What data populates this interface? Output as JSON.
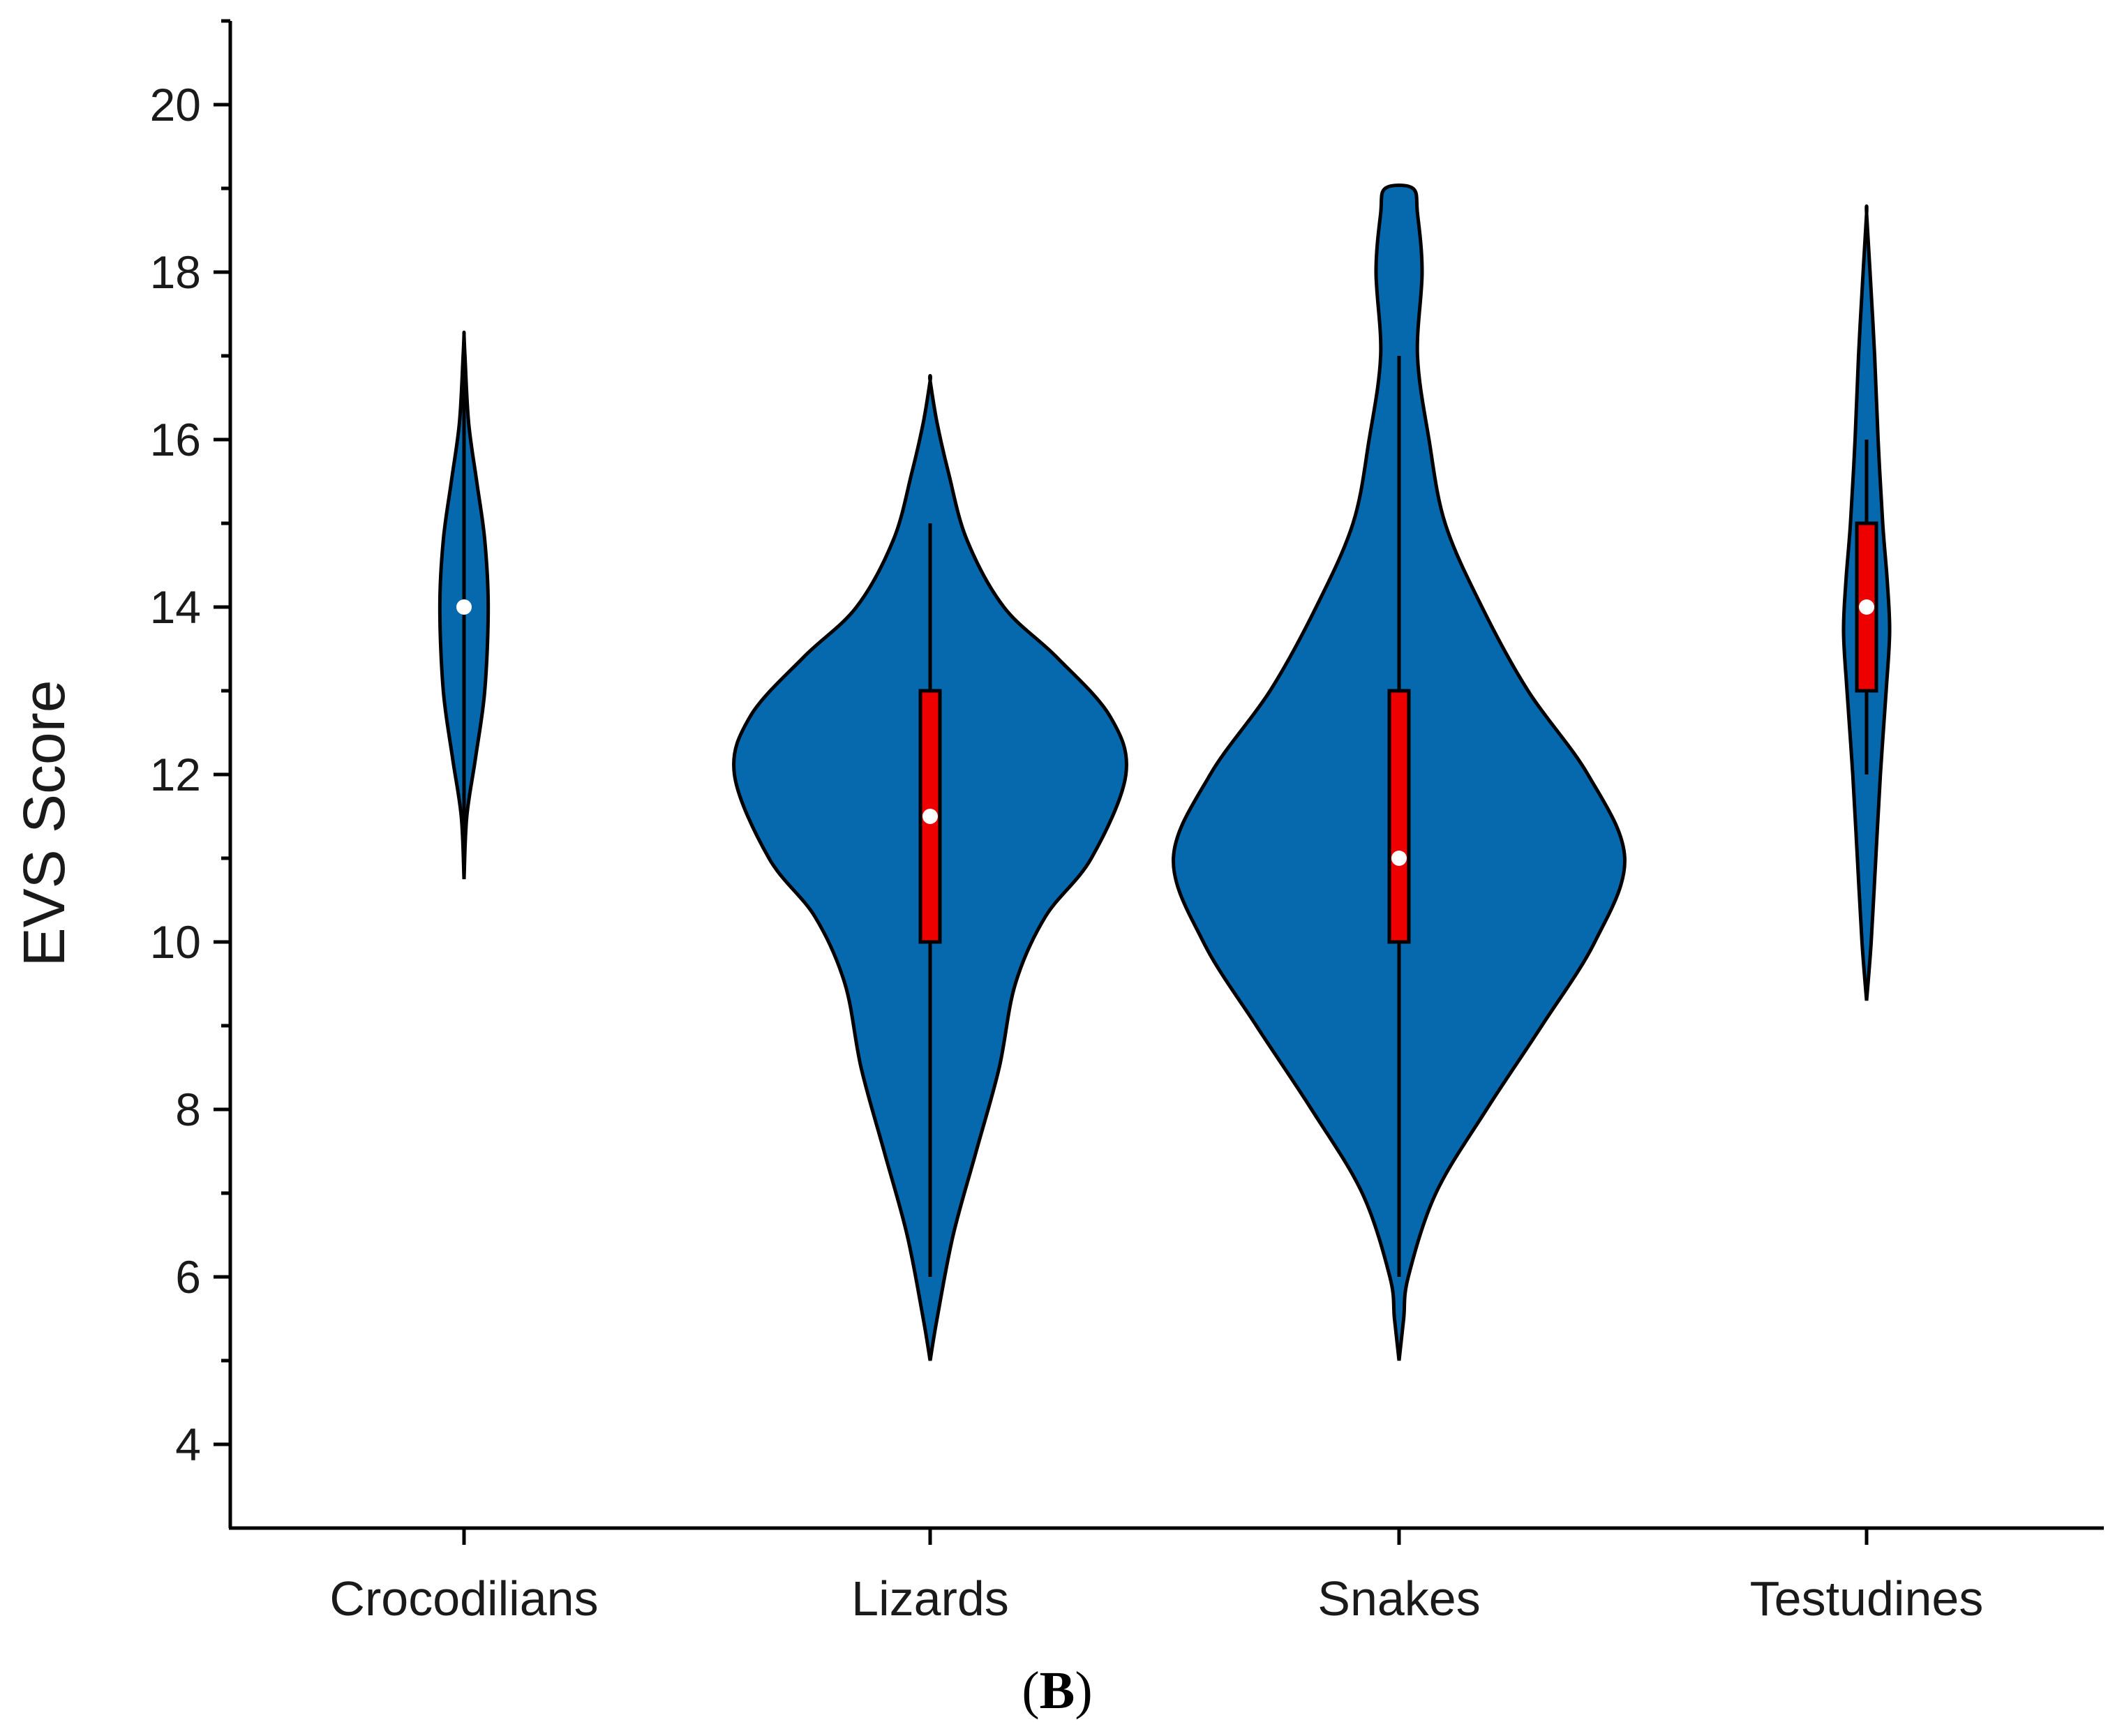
{
  "chart_data": {
    "type": "violin",
    "ylabel": "EVS Score",
    "panel_label": "B",
    "ylim": [
      3,
      21
    ],
    "yticks": [
      4,
      6,
      8,
      10,
      12,
      14,
      16,
      18,
      20
    ],
    "colors": {
      "violin": "#0769ad",
      "box": "#ee0000",
      "median": "#ffffff",
      "outline": "#000000"
    },
    "series": [
      {
        "name": "Crocodilians",
        "min": 11,
        "max": 17,
        "q1": 14,
        "q3": 14,
        "median": 14,
        "density": [
          [
            10.75,
            0
          ],
          [
            11.5,
            0.012
          ],
          [
            12.2,
            0.05
          ],
          [
            13,
            0.09
          ],
          [
            14,
            0.105
          ],
          [
            14.8,
            0.09
          ],
          [
            15.5,
            0.055
          ],
          [
            16.2,
            0.02
          ],
          [
            17,
            0.004
          ],
          [
            17.25,
            0
          ]
        ]
      },
      {
        "name": "Lizards",
        "min": 6,
        "max": 15,
        "q1": 10,
        "q3": 13,
        "median": 11.5,
        "density": [
          [
            5,
            0
          ],
          [
            5.5,
            0.03
          ],
          [
            6.5,
            0.1
          ],
          [
            7.5,
            0.2
          ],
          [
            8.5,
            0.3
          ],
          [
            9.5,
            0.37
          ],
          [
            10.3,
            0.5
          ],
          [
            11,
            0.7
          ],
          [
            12,
            0.85
          ],
          [
            12.7,
            0.78
          ],
          [
            13.4,
            0.55
          ],
          [
            14,
            0.32
          ],
          [
            14.8,
            0.16
          ],
          [
            15.6,
            0.08
          ],
          [
            16.2,
            0.03
          ],
          [
            16.7,
            0
          ]
        ]
      },
      {
        "name": "Snakes",
        "min": 6,
        "max": 17,
        "q1": 10,
        "q3": 13,
        "median": 11,
        "density": [
          [
            5,
            0
          ],
          [
            5.5,
            0.02
          ],
          [
            6,
            0.04
          ],
          [
            7,
            0.16
          ],
          [
            8,
            0.38
          ],
          [
            9,
            0.62
          ],
          [
            10,
            0.85
          ],
          [
            11,
            0.98
          ],
          [
            12,
            0.82
          ],
          [
            13,
            0.56
          ],
          [
            14,
            0.36
          ],
          [
            15,
            0.2
          ],
          [
            16,
            0.13
          ],
          [
            17,
            0.08
          ],
          [
            18,
            0.1
          ],
          [
            18.7,
            0.08
          ],
          [
            19,
            0.06
          ]
        ]
      },
      {
        "name": "Testudines",
        "min": 12,
        "max": 16,
        "q1": 13,
        "q3": 15,
        "median": 14,
        "density": [
          [
            9.3,
            0
          ],
          [
            10,
            0.02
          ],
          [
            11,
            0.04
          ],
          [
            12,
            0.06
          ],
          [
            13,
            0.085
          ],
          [
            13.7,
            0.1
          ],
          [
            14.3,
            0.09
          ],
          [
            15,
            0.07
          ],
          [
            16,
            0.05
          ],
          [
            17,
            0.035
          ],
          [
            18,
            0.015
          ],
          [
            18.7,
            0
          ]
        ]
      }
    ]
  }
}
